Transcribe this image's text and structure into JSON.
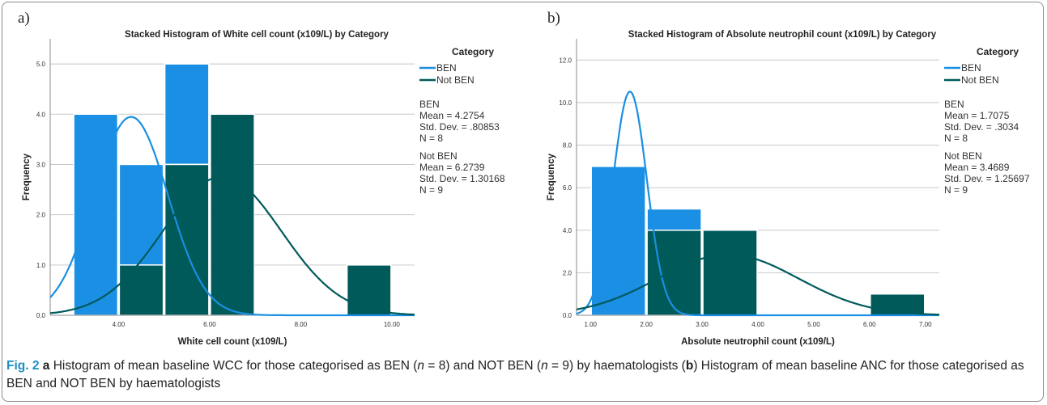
{
  "caption": {
    "fig_label": "Fig. 2",
    "text_a_letter": "a",
    "text_1": " Histogram of mean baseline WCC for those categorised as BEN (",
    "n_var_1": "n",
    "text_2": " = 8) and NOT BEN (",
    "n_var_2": "n",
    "text_3": " = 9) by haematologists (",
    "text_b_letter": "b",
    "text_4": ") Histogram of mean baseline ANC for those categorised as BEN and NOT BEN by haematologists"
  },
  "colors": {
    "ben": "#1a8fe3",
    "not_ben": "#005a5a",
    "grid": "#c8c8c8"
  },
  "chart_data": [
    {
      "type": "bar",
      "panel_label": "a)",
      "title": "Stacked Histogram of White cell count (x109/L) by Category",
      "xlabel": "White cell count (x109/L)",
      "ylabel": "Frequency",
      "xlim": [
        2.5,
        10.5
      ],
      "ylim": [
        0,
        5.5
      ],
      "xticks": [
        4,
        6,
        8,
        10
      ],
      "xtick_labels": [
        "4.00",
        "6.00",
        "8.00",
        "10.00"
      ],
      "yticks": [
        0,
        1,
        2,
        3,
        4,
        5
      ],
      "ytick_labels": [
        "0.0",
        "1.0",
        "2.0",
        "3.0",
        "4.0",
        "5.0"
      ],
      "bins": [
        [
          3,
          4
        ],
        [
          4,
          5
        ],
        [
          5,
          6
        ],
        [
          6,
          7
        ],
        [
          7,
          8
        ],
        [
          8,
          9
        ],
        [
          9,
          10
        ]
      ],
      "series": [
        {
          "name": "BEN",
          "values": [
            4,
            2,
            2,
            0,
            0,
            0,
            0
          ]
        },
        {
          "name": "Not BEN",
          "values": [
            0,
            1,
            3,
            4,
            0,
            0,
            1
          ]
        }
      ],
      "curves": [
        {
          "series": "BEN",
          "mean": 4.2754,
          "sd": 0.80853,
          "n": 8
        },
        {
          "series": "Not BEN",
          "mean": 6.2739,
          "sd": 1.30168,
          "n": 9
        }
      ],
      "legend": {
        "title": "Category",
        "placement": "right",
        "entries": [
          "BEN",
          "Not BEN"
        ],
        "stats": [
          {
            "name": "BEN",
            "mean": "Mean = 4.2754",
            "sd": "Std. Dev. = .80853",
            "n": "N = 8"
          },
          {
            "name": "Not BEN",
            "mean": "Mean = 6.2739",
            "sd": "Std. Dev. = 1.30168",
            "n": "N = 9"
          }
        ]
      },
      "grid": true
    },
    {
      "type": "bar",
      "panel_label": "b)",
      "title": "Stacked Histogram of Absolute neutrophil count (x109/L) by Category",
      "xlabel": "Absolute neutrophil count (x109/L)",
      "ylabel": "Frequency",
      "xlim": [
        0.75,
        7.25
      ],
      "ylim": [
        0,
        13
      ],
      "xticks": [
        1,
        2,
        3,
        4,
        5,
        6,
        7
      ],
      "xtick_labels": [
        "1.00",
        "2.00",
        "3.00",
        "4.00",
        "5.00",
        "6.00",
        "7.00"
      ],
      "yticks": [
        0,
        2,
        4,
        6,
        8,
        10,
        12
      ],
      "ytick_labels": [
        "0.0",
        "2.0",
        "4.0",
        "6.0",
        "8.0",
        "10.0",
        "12.0"
      ],
      "bins": [
        [
          1,
          2
        ],
        [
          2,
          3
        ],
        [
          3,
          4
        ],
        [
          4,
          5
        ],
        [
          5,
          6
        ],
        [
          6,
          7
        ]
      ],
      "series": [
        {
          "name": "BEN",
          "values": [
            7,
            1,
            0,
            0,
            0,
            0
          ]
        },
        {
          "name": "Not BEN",
          "values": [
            0,
            4,
            4,
            0,
            0,
            1
          ]
        }
      ],
      "curves": [
        {
          "series": "BEN",
          "mean": 1.7075,
          "sd": 0.3034,
          "n": 8
        },
        {
          "series": "Not BEN",
          "mean": 3.4689,
          "sd": 1.25697,
          "n": 9
        }
      ],
      "legend": {
        "title": "Category",
        "placement": "right",
        "entries": [
          "BEN",
          "Not BEN"
        ],
        "stats": [
          {
            "name": "BEN",
            "mean": "Mean = 1.7075",
            "sd": "Std. Dev. = .3034",
            "n": "N = 8"
          },
          {
            "name": "Not BEN",
            "mean": "Mean = 3.4689",
            "sd": "Std. Dev. = 1.25697",
            "n": "N = 9"
          }
        ]
      },
      "grid": true
    }
  ]
}
